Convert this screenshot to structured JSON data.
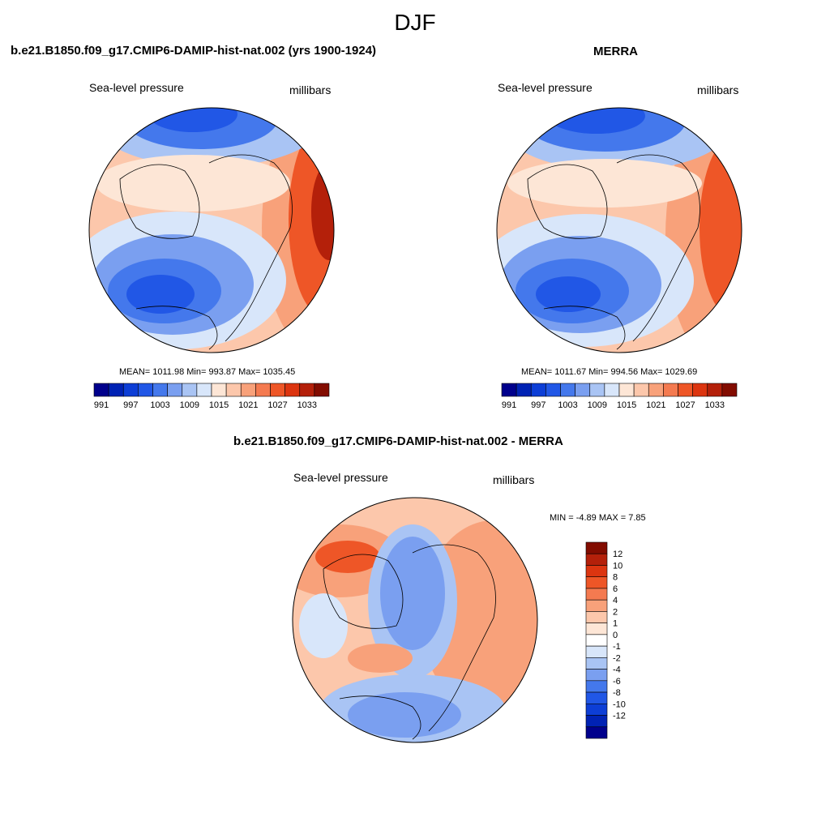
{
  "title": "DJF",
  "panels": [
    {
      "title": "b.e21.B1850.f09_g17.CMIP6-DAMIP-hist-nat.002 (yrs 1900-1924)",
      "left_label": "Sea-level pressure",
      "right_label": "millibars",
      "stats": "MEAN= 1011.98  Min= 993.87  Max= 1035.45"
    },
    {
      "title": "MERRA",
      "left_label": "Sea-level pressure",
      "right_label": "millibars",
      "stats": "MEAN= 1011.67  Min= 994.56  Max= 1029.69"
    },
    {
      "title": "b.e21.B1850.f09_g17.CMIP6-DAMIP-hist-nat.002 - MERRA",
      "left_label": "Sea-level pressure",
      "right_label": "millibars",
      "stats": "MIN =  -4.89 MAX =   7.85"
    }
  ],
  "colorbar_abs": {
    "orientation": "horizontal",
    "colors": [
      "#00008c",
      "#0022b4",
      "#0d3ed6",
      "#2157e6",
      "#4478ec",
      "#7a9ff0",
      "#a9c4f4",
      "#d8e6fa",
      "#fde6d6",
      "#fcc7ab",
      "#f8a17a",
      "#f47a50",
      "#ee5627",
      "#dc3510",
      "#b4200a",
      "#820c00"
    ],
    "ticks": [
      "991",
      "997",
      "1003",
      "1009",
      "1015",
      "1021",
      "1027",
      "1033"
    ]
  },
  "colorbar_diff": {
    "orientation": "vertical",
    "colors": [
      "#820c00",
      "#b4200a",
      "#dc3510",
      "#ee5627",
      "#f47a50",
      "#f8a17a",
      "#fcc7ab",
      "#fde6d6",
      "#ffffff",
      "#d8e6fa",
      "#a9c4f4",
      "#7a9ff0",
      "#4478ec",
      "#2157e6",
      "#0d3ed6",
      "#0022b4",
      "#00008c"
    ],
    "ticks": [
      "12",
      "10",
      "8",
      "6",
      "4",
      "2",
      "1",
      "0",
      "-1",
      "-2",
      "-4",
      "-6",
      "-8",
      "-10",
      "-12"
    ]
  }
}
